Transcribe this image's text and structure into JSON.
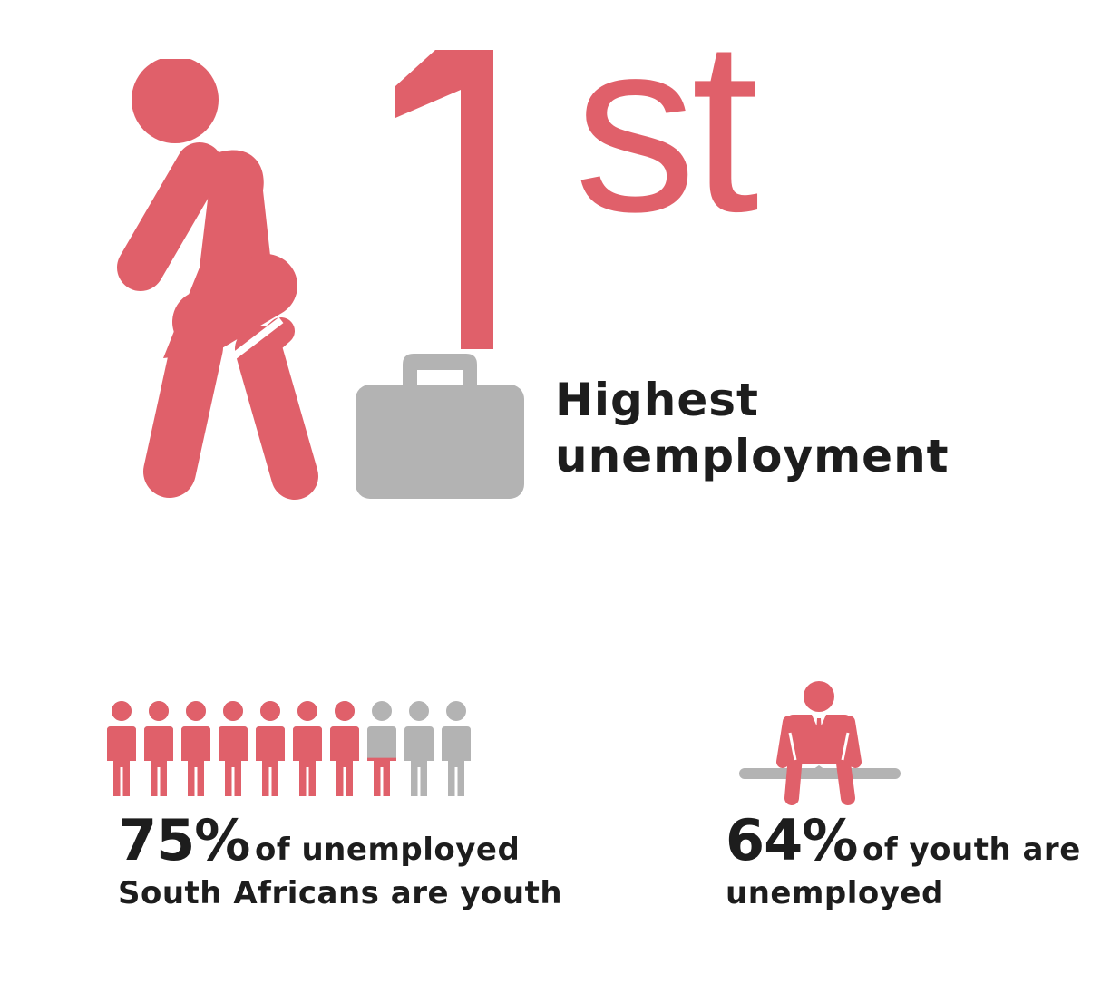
{
  "rank": {
    "number": "1",
    "suffix": "st",
    "label_line1": "Highest",
    "label_line2": "unemployment"
  },
  "stats": {
    "youth_share": {
      "value": "75%",
      "text_line1": "of unemployed",
      "text_line2": "South Africans are youth",
      "figures_total": 10,
      "figures_filled": 7.5
    },
    "youth_unemployed": {
      "value": "64%",
      "text_line1": "of youth are",
      "text_line2": "unemployed"
    }
  },
  "icons": {
    "walker": "walking-person-icon",
    "briefcase": "briefcase-icon",
    "people": "person-icon",
    "sitting": "sitting-person-icon"
  },
  "colors": {
    "accent": "#e0606a",
    "muted": "#b3b3b3",
    "text": "#1d1d1d"
  }
}
